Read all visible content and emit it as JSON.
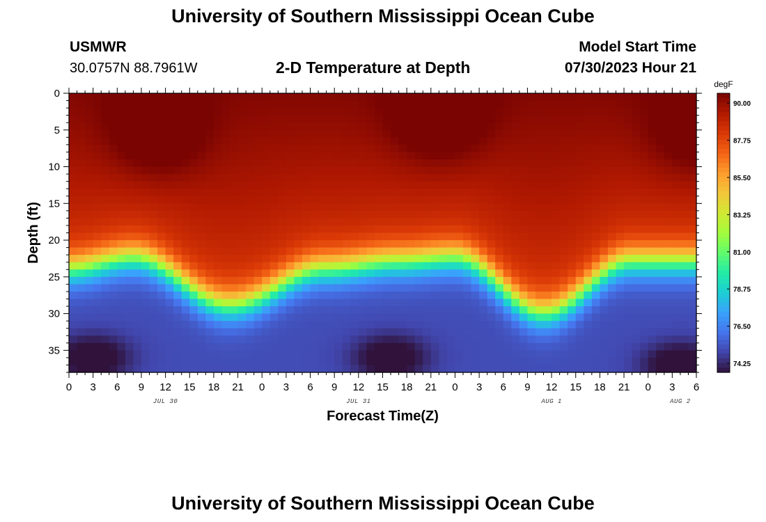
{
  "header": {
    "title": "University of Southern Mississippi Ocean Cube",
    "station": "USMWR",
    "coords": "30.0757N  88.7961W",
    "plot_title": "2-D Temperature at Depth",
    "model_label": "Model Start Time",
    "model_time": "07/30/2023 Hour 21"
  },
  "footer": {
    "title": "University of Southern Mississippi Ocean Cube"
  },
  "chart_data": {
    "type": "heatmap",
    "title": "2-D Temperature at Depth",
    "xlabel": "Forecast Time(Z)",
    "ylabel": "Depth (ft)",
    "x_range_hours": [
      0,
      78
    ],
    "y_range_ft": [
      0,
      38
    ],
    "y_ticks": [
      "0",
      "5",
      "10",
      "15",
      "20",
      "25",
      "30",
      "35"
    ],
    "x_ticks": [
      "0",
      "3",
      "6",
      "9",
      "12",
      "15",
      "18",
      "21",
      "0",
      "3",
      "6",
      "9",
      "12",
      "15",
      "18",
      "21",
      "0",
      "3",
      "6",
      "9",
      "12",
      "15",
      "18",
      "21",
      "0",
      "3",
      "6"
    ],
    "day_labels": [
      {
        "label": "JUL 30",
        "hour": 12
      },
      {
        "label": "JUL 31",
        "hour": 36
      },
      {
        "label": "AUG 1",
        "hour": 60
      },
      {
        "label": "AUG 2",
        "hour": 76
      }
    ],
    "colorbar": {
      "unit": "degF",
      "range": [
        73.7,
        90.6
      ],
      "ticks": [
        "90.00",
        "87.75",
        "85.50",
        "83.25",
        "81.00",
        "78.75",
        "76.50",
        "74.25"
      ],
      "colors": [
        "#30123b",
        "#4145ab",
        "#4675ed",
        "#39a2fc",
        "#1bcfd4",
        "#24eca6",
        "#61fc6c",
        "#a4fc3b",
        "#d1e834",
        "#f3c63a",
        "#fe9b2d",
        "#f36315",
        "#d93806",
        "#b11901",
        "#7a0402"
      ]
    },
    "thermocline_depth_ft": [
      {
        "hour": 0,
        "depth": 24
      },
      {
        "hour": 8,
        "depth": 22.5
      },
      {
        "hour": 20,
        "depth": 29
      },
      {
        "hour": 32,
        "depth": 24
      },
      {
        "hour": 41,
        "depth": 23
      },
      {
        "hour": 48,
        "depth": 22.5
      },
      {
        "hour": 59,
        "depth": 30
      },
      {
        "hour": 70,
        "depth": 23
      },
      {
        "hour": 78,
        "depth": 23
      }
    ],
    "surface_warm_cores": [
      {
        "hour": 11,
        "depth": 5,
        "temp": 90.6
      },
      {
        "hour": 46,
        "depth": 3,
        "temp": 90.6
      },
      {
        "hour": 78,
        "depth": 5,
        "temp": 90.2
      }
    ],
    "bottom_cold_cores": [
      {
        "hour": 3,
        "depth": 36,
        "temp": 73.8
      },
      {
        "hour": 40,
        "depth": 36,
        "temp": 73.8
      },
      {
        "hour": 76,
        "depth": 37,
        "temp": 73.7
      }
    ]
  }
}
